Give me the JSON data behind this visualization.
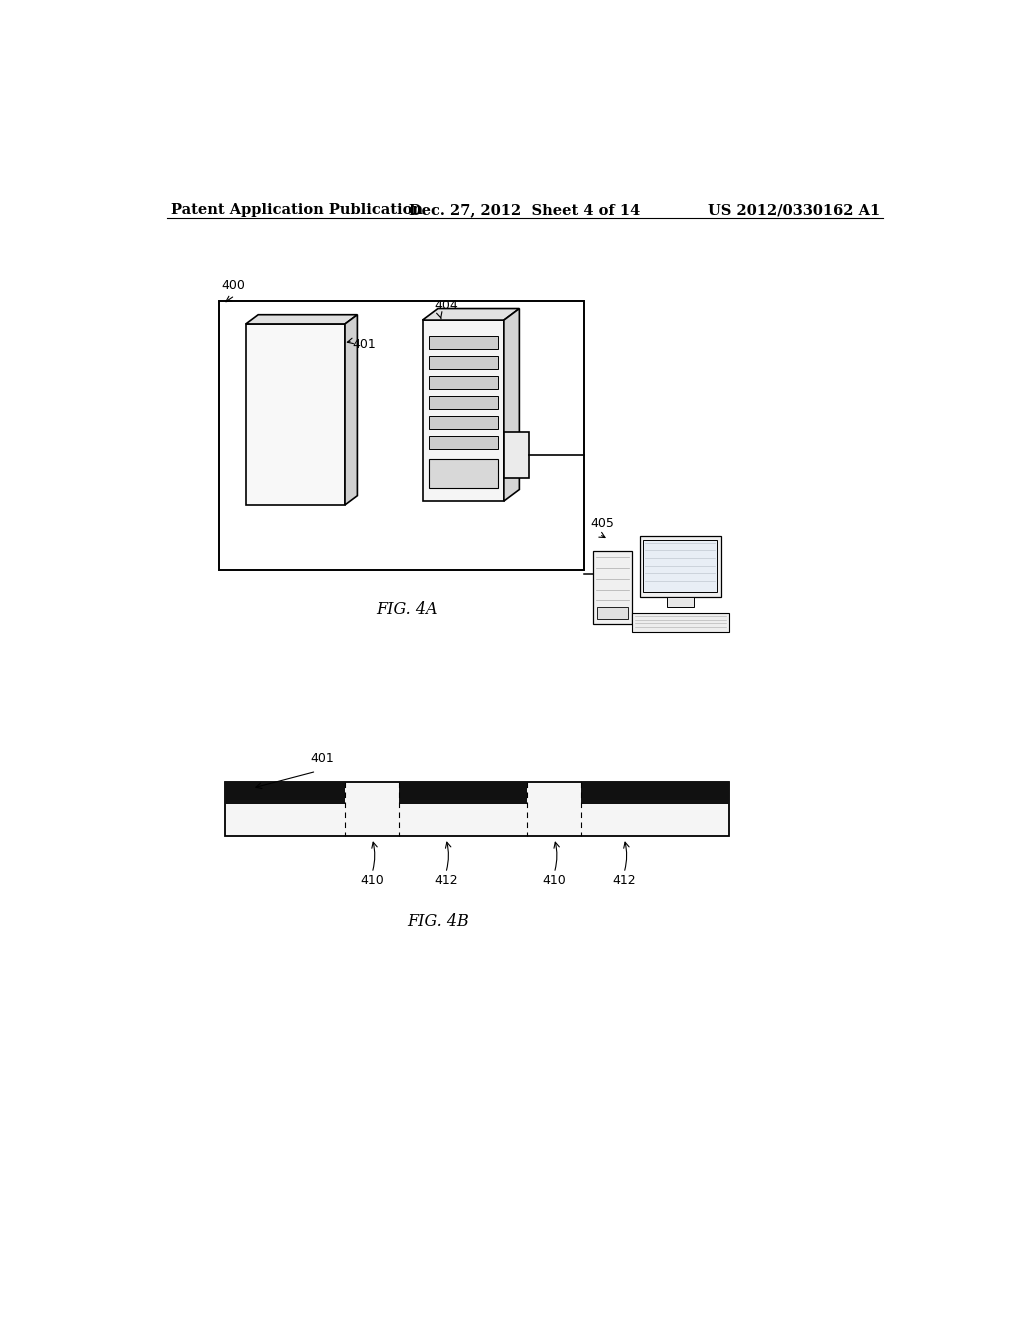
{
  "background_color": "#ffffff",
  "header_left": "Patent Application Publication",
  "header_center": "Dec. 27, 2012  Sheet 4 of 14",
  "header_right": "US 2012/0330162 A1",
  "fig4a_label": "FIG. 4A",
  "fig4b_label": "FIG. 4B",
  "label_400": "400",
  "label_401_4a": "401",
  "label_404": "404",
  "label_405": "405",
  "label_401_4b": "401",
  "label_410_1": "410",
  "label_412_1": "412",
  "label_410_2": "410",
  "label_412_2": "412"
}
